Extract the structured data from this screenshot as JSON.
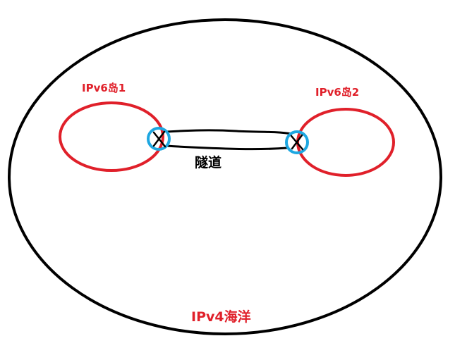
{
  "labels": {
    "island1": "IPv6岛1",
    "island2": "IPv6岛2",
    "tunnel": "隧道",
    "ocean": "IPv4海洋"
  },
  "colors": {
    "ocean_outline": "#000000",
    "island_outline": "#e0202a",
    "endpoint_circle": "#1ea7e1",
    "tunnel_line": "#000000",
    "endpoint_cross": "#000000",
    "island_label_text": "#e0202a",
    "tunnel_label_text": "#000000",
    "ocean_label_text": "#e0202a"
  }
}
